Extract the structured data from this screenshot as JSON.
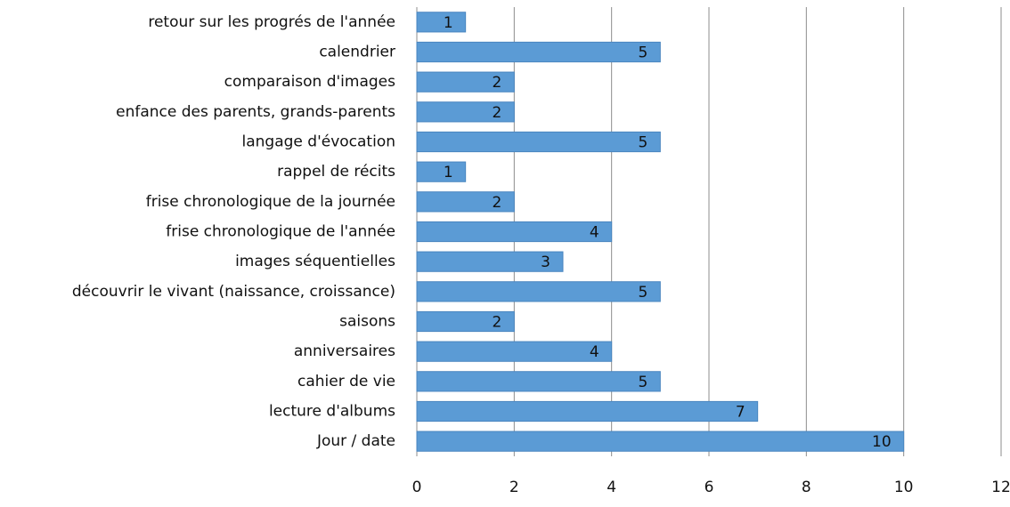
{
  "chart_data": {
    "type": "barh",
    "categories": [
      "retour sur les progrés de l'année",
      "calendrier",
      "comparaison d'images",
      "enfance des parents, grands-parents",
      "langage d'évocation",
      "rappel de récits",
      "frise chronologique de la journée",
      "frise chronologique de l'année",
      "images séquentielles",
      "découvrir le vivant (naissance, croissance)",
      "saisons",
      "anniversaires",
      "cahier de vie",
      "lecture d'albums",
      "Jour / date"
    ],
    "values": [
      1,
      5,
      2,
      2,
      5,
      1,
      2,
      4,
      3,
      5,
      2,
      4,
      5,
      7,
      10
    ],
    "color": "#5b9bd5",
    "xlim": [
      0,
      12
    ],
    "xticks": [
      0,
      2,
      4,
      6,
      8,
      10,
      12
    ],
    "grid": true
  }
}
